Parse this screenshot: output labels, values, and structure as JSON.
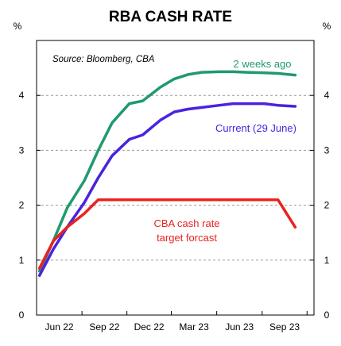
{
  "chart_data": {
    "type": "line",
    "title": "RBA CASH RATE",
    "y_unit_left": "%",
    "y_unit_right": "%",
    "source_note": "Source: Bloomberg, CBA",
    "ylim": [
      0,
      5
    ],
    "y_ticks": [
      0,
      1,
      2,
      3,
      4
    ],
    "x_ticks": [
      "Jun 22",
      "Sep 22",
      "Dec 22",
      "Mar 23",
      "Jun 23",
      "Sep 23"
    ],
    "xlim": [
      "2022-06-01",
      "2023-12-15"
    ],
    "grid": "horizontal dashed",
    "series": [
      {
        "name": "2 weeks ago",
        "color": "#1f9a6e",
        "points": [
          [
            "2022-06-07",
            0.8
          ],
          [
            "2022-07-05",
            1.35
          ],
          [
            "2022-08-02",
            1.95
          ],
          [
            "2022-09-06",
            2.45
          ],
          [
            "2022-10-04",
            3.0
          ],
          [
            "2022-11-01",
            3.5
          ],
          [
            "2022-12-06",
            3.85
          ],
          [
            "2023-01-02",
            3.9
          ],
          [
            "2023-02-07",
            4.15
          ],
          [
            "2023-03-07",
            4.3
          ],
          [
            "2023-04-04",
            4.38
          ],
          [
            "2023-05-02",
            4.42
          ],
          [
            "2023-06-06",
            4.43
          ],
          [
            "2023-07-04",
            4.43
          ],
          [
            "2023-08-01",
            4.42
          ],
          [
            "2023-09-05",
            4.41
          ],
          [
            "2023-10-03",
            4.4
          ],
          [
            "2023-11-07",
            4.37
          ]
        ]
      },
      {
        "name": "Current (29 June)",
        "color": "#4a22e0",
        "points": [
          [
            "2022-06-07",
            0.72
          ],
          [
            "2022-07-05",
            1.2
          ],
          [
            "2022-08-02",
            1.6
          ],
          [
            "2022-09-06",
            2.05
          ],
          [
            "2022-10-04",
            2.5
          ],
          [
            "2022-11-01",
            2.9
          ],
          [
            "2022-12-06",
            3.2
          ],
          [
            "2023-01-02",
            3.28
          ],
          [
            "2023-02-07",
            3.55
          ],
          [
            "2023-03-07",
            3.7
          ],
          [
            "2023-04-04",
            3.75
          ],
          [
            "2023-05-02",
            3.78
          ],
          [
            "2023-06-06",
            3.82
          ],
          [
            "2023-07-04",
            3.85
          ],
          [
            "2023-08-01",
            3.85
          ],
          [
            "2023-09-05",
            3.85
          ],
          [
            "2023-10-03",
            3.82
          ],
          [
            "2023-11-07",
            3.8
          ]
        ]
      },
      {
        "name": "CBA cash rate target forcast",
        "color": "#e8231e",
        "points": [
          [
            "2022-06-07",
            0.85
          ],
          [
            "2022-07-05",
            1.35
          ],
          [
            "2022-08-02",
            1.6
          ],
          [
            "2022-09-06",
            1.85
          ],
          [
            "2022-10-04",
            2.1
          ],
          [
            "2022-11-01",
            2.1
          ],
          [
            "2022-12-06",
            2.1
          ],
          [
            "2023-03-07",
            2.1
          ],
          [
            "2023-06-06",
            2.1
          ],
          [
            "2023-09-05",
            2.1
          ],
          [
            "2023-10-03",
            2.1
          ],
          [
            "2023-11-07",
            1.6
          ]
        ]
      }
    ],
    "annotations": {
      "two_weeks_ago": "2 weeks ago",
      "current": "Current (29 June)",
      "cba_line1": "CBA cash rate",
      "cba_line2": "target forcast"
    }
  }
}
